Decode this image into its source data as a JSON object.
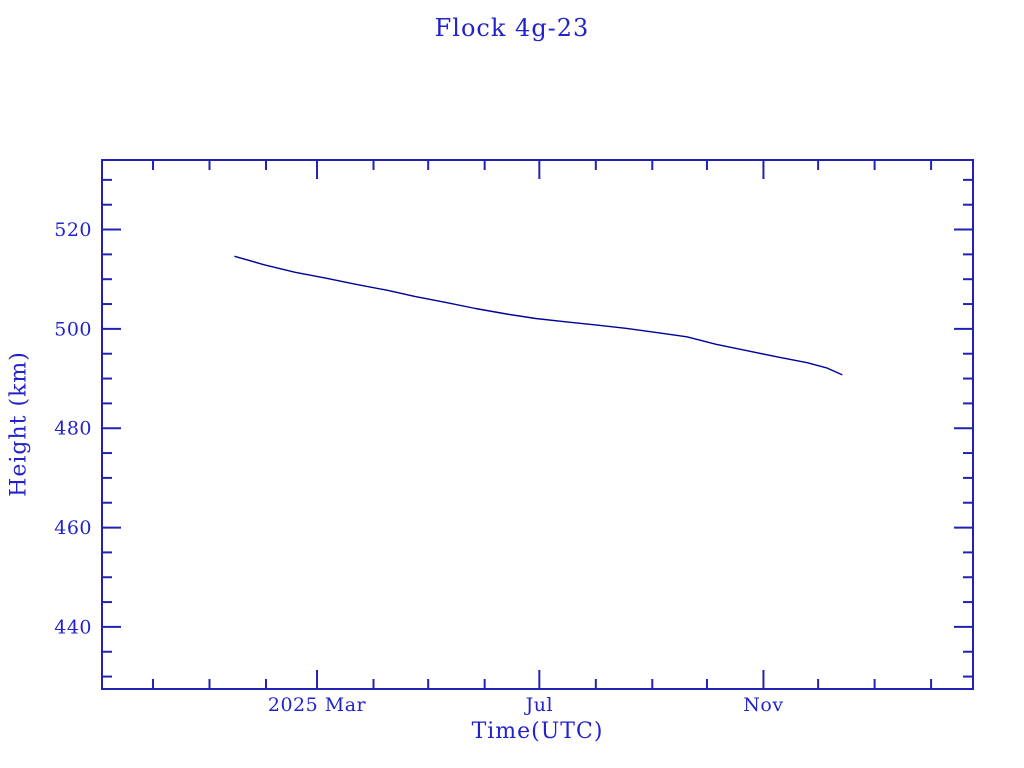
{
  "page": {
    "title": "Flock 4g-23"
  },
  "colors": {
    "background": "#ffffff",
    "text": "#2222cc",
    "axis": "#2222b2",
    "line": "#000099"
  },
  "chart_data": {
    "type": "line",
    "title": "Flock 4g-23",
    "xlabel": "Time(UTC)",
    "ylabel": "Height (km)",
    "x_range": [
      "2024-11-03",
      "2026-02-24"
    ],
    "ylim": [
      427.5,
      534
    ],
    "y_major_ticks": [
      520,
      500,
      480,
      460,
      440
    ],
    "y_minor_step": 5,
    "x_minor_tick_unit": "month-start",
    "x_major_ticks": [
      {
        "date": "2025-03-01",
        "label": "2025 Mar"
      },
      {
        "date": "2025-07-01",
        "label": "Jul"
      },
      {
        "date": "2025-11-01",
        "label": "Nov"
      }
    ],
    "grid": false,
    "legend": "none",
    "series": [
      {
        "name": "Flock 4g-23",
        "color": "#000099",
        "points": [
          [
            "2025-01-15",
            514.6
          ],
          [
            "2025-01-31",
            512.9
          ],
          [
            "2025-02-17",
            511.4
          ],
          [
            "2025-03-06",
            510.2
          ],
          [
            "2025-03-22",
            509.0
          ],
          [
            "2025-04-08",
            507.8
          ],
          [
            "2025-04-24",
            506.5
          ],
          [
            "2025-05-11",
            505.3
          ],
          [
            "2025-05-27",
            504.1
          ],
          [
            "2025-06-13",
            503.0
          ],
          [
            "2025-06-29",
            502.1
          ],
          [
            "2025-07-16",
            501.4
          ],
          [
            "2025-08-01",
            500.8
          ],
          [
            "2025-08-18",
            500.1
          ],
          [
            "2025-09-03",
            499.3
          ],
          [
            "2025-09-20",
            498.4
          ],
          [
            "2025-10-06",
            496.9
          ],
          [
            "2025-10-23",
            495.6
          ],
          [
            "2025-11-08",
            494.4
          ],
          [
            "2025-11-25",
            493.2
          ],
          [
            "2025-12-06",
            492.1
          ],
          [
            "2025-12-14",
            490.8
          ]
        ]
      }
    ]
  }
}
